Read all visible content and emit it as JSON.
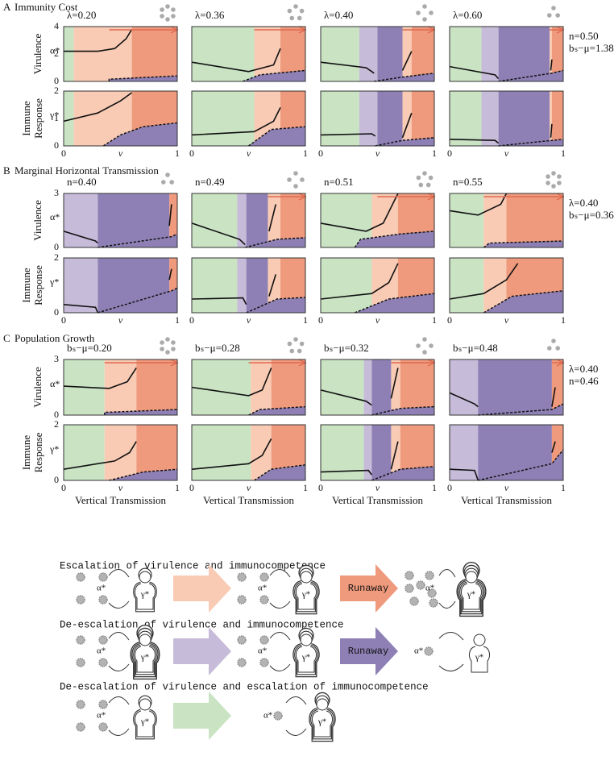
{
  "sections": [
    {
      "letter": "A",
      "title": "Immunity Cost",
      "params": [
        "n=0.50",
        "bₛ−μ=1.38"
      ],
      "panels": [
        "λ=0.20",
        "λ=0.36",
        "λ=0.40",
        "λ=0.60"
      ],
      "virulence_ticks": [
        "0",
        "2",
        "4"
      ],
      "immune_ticks": [
        "0",
        "1",
        "2"
      ]
    },
    {
      "letter": "B",
      "title": "Marginal Horizontal Transmission",
      "params": [
        "λ=0.40",
        "bₛ−μ=0.36"
      ],
      "panels": [
        "n=0.40",
        "n=0.49",
        "n=0.51",
        "n=0.55"
      ],
      "virulence_ticks": [
        "0",
        "3"
      ],
      "immune_ticks": [
        "0",
        "2"
      ]
    },
    {
      "letter": "C",
      "title": "Population Growth",
      "params": [
        "λ=0.40",
        "n=0.46"
      ],
      "panels": [
        "bₛ−μ=0.20",
        "bₛ−μ=0.28",
        "bₛ−μ=0.32",
        "bₛ−μ=0.48"
      ],
      "virulence_ticks": [
        "0",
        "3"
      ],
      "immune_ticks": [
        "0",
        "2"
      ]
    }
  ],
  "row_labels": {
    "virulence": "Virulence",
    "immune": [
      "Immune",
      "Response"
    ],
    "alpha": "α*",
    "gamma": "γ*"
  },
  "x_ticks": [
    "0",
    "v",
    "1"
  ],
  "x_label": "Vertical Transmission",
  "legend": {
    "rows": [
      {
        "title": "Escalation of virulence and immunocompetence",
        "runaway": "Runaway"
      },
      {
        "title": "De-escalation of virulence and immunocompetence",
        "runaway": "Runaway"
      },
      {
        "title": "De-escalation of virulence and escalation of immunocompetence"
      }
    ],
    "alpha": "α*",
    "gamma": "γ*"
  }
}
